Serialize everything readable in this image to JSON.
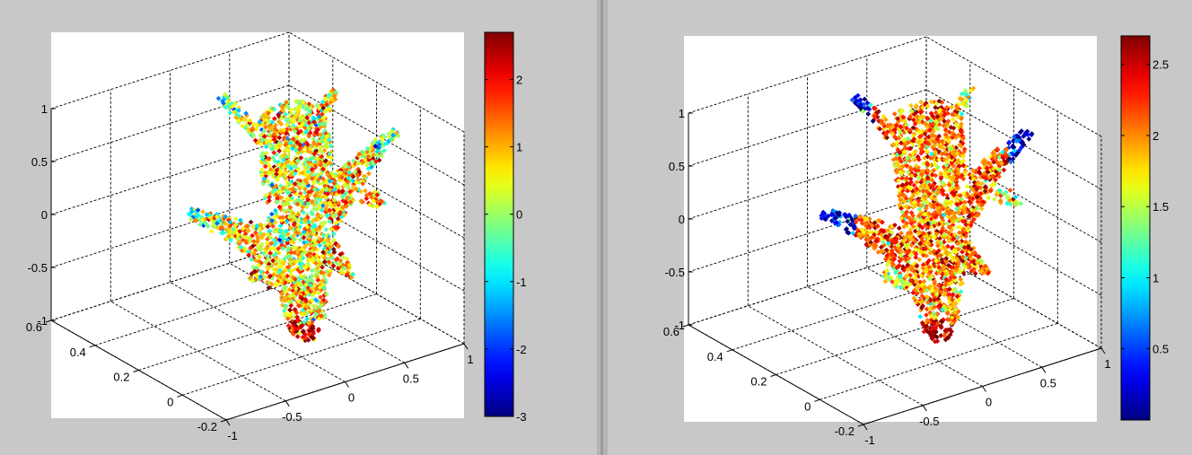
{
  "window": {
    "background": "#c8c8c8",
    "divider_color": "#a8a8a8"
  },
  "chart_data": [
    {
      "type": "scatter3d",
      "title": "",
      "xlabel": "",
      "ylabel": "",
      "zlabel": "",
      "grid": true,
      "grid_style": "dashed",
      "colormap": "jet",
      "x_range": [
        -1,
        1
      ],
      "y_range": [
        -0.2,
        0.6
      ],
      "z_range": [
        -1,
        1
      ],
      "x_ticks": [
        "-1",
        "-0.5",
        "0",
        "0.5",
        "1"
      ],
      "y_ticks": [
        "-0.2",
        "0",
        "0.2",
        "0.4",
        "0.6"
      ],
      "z_ticks": [
        "-1",
        "-0.5",
        "0",
        "0.5",
        "1"
      ],
      "colorbar": {
        "range": [
          -3,
          2.7
        ],
        "ticks": [
          "-3",
          "-2",
          "-1",
          "0",
          "1",
          "2"
        ]
      },
      "point_value_profile": {
        "body": 0.6,
        "wings": 0.8,
        "wing_tips": -0.3,
        "nose": 2.3,
        "tail": 0.9,
        "noise": 0.9
      }
    },
    {
      "type": "scatter3d",
      "title": "",
      "xlabel": "",
      "ylabel": "",
      "zlabel": "",
      "grid": true,
      "grid_style": "dashed",
      "colormap": "jet",
      "x_range": [
        -1,
        1
      ],
      "y_range": [
        -0.2,
        0.6
      ],
      "z_range": [
        -1,
        1
      ],
      "x_ticks": [
        "-1",
        "-0.5",
        "0",
        "0.5",
        "1"
      ],
      "y_ticks": [
        "-0.2",
        "0",
        "0.2",
        "0.4",
        "0.6"
      ],
      "z_ticks": [
        "-1",
        "-0.5",
        "0",
        "0.5",
        "1"
      ],
      "colorbar": {
        "range": [
          0,
          2.7
        ],
        "ticks": [
          "0.5",
          "1",
          "1.5",
          "2",
          "2.5"
        ]
      },
      "point_value_profile": {
        "body": 2.0,
        "wings": 2.1,
        "wing_tips": 0.3,
        "nose": 2.6,
        "tail": 1.6,
        "noise": 0.35
      }
    }
  ]
}
